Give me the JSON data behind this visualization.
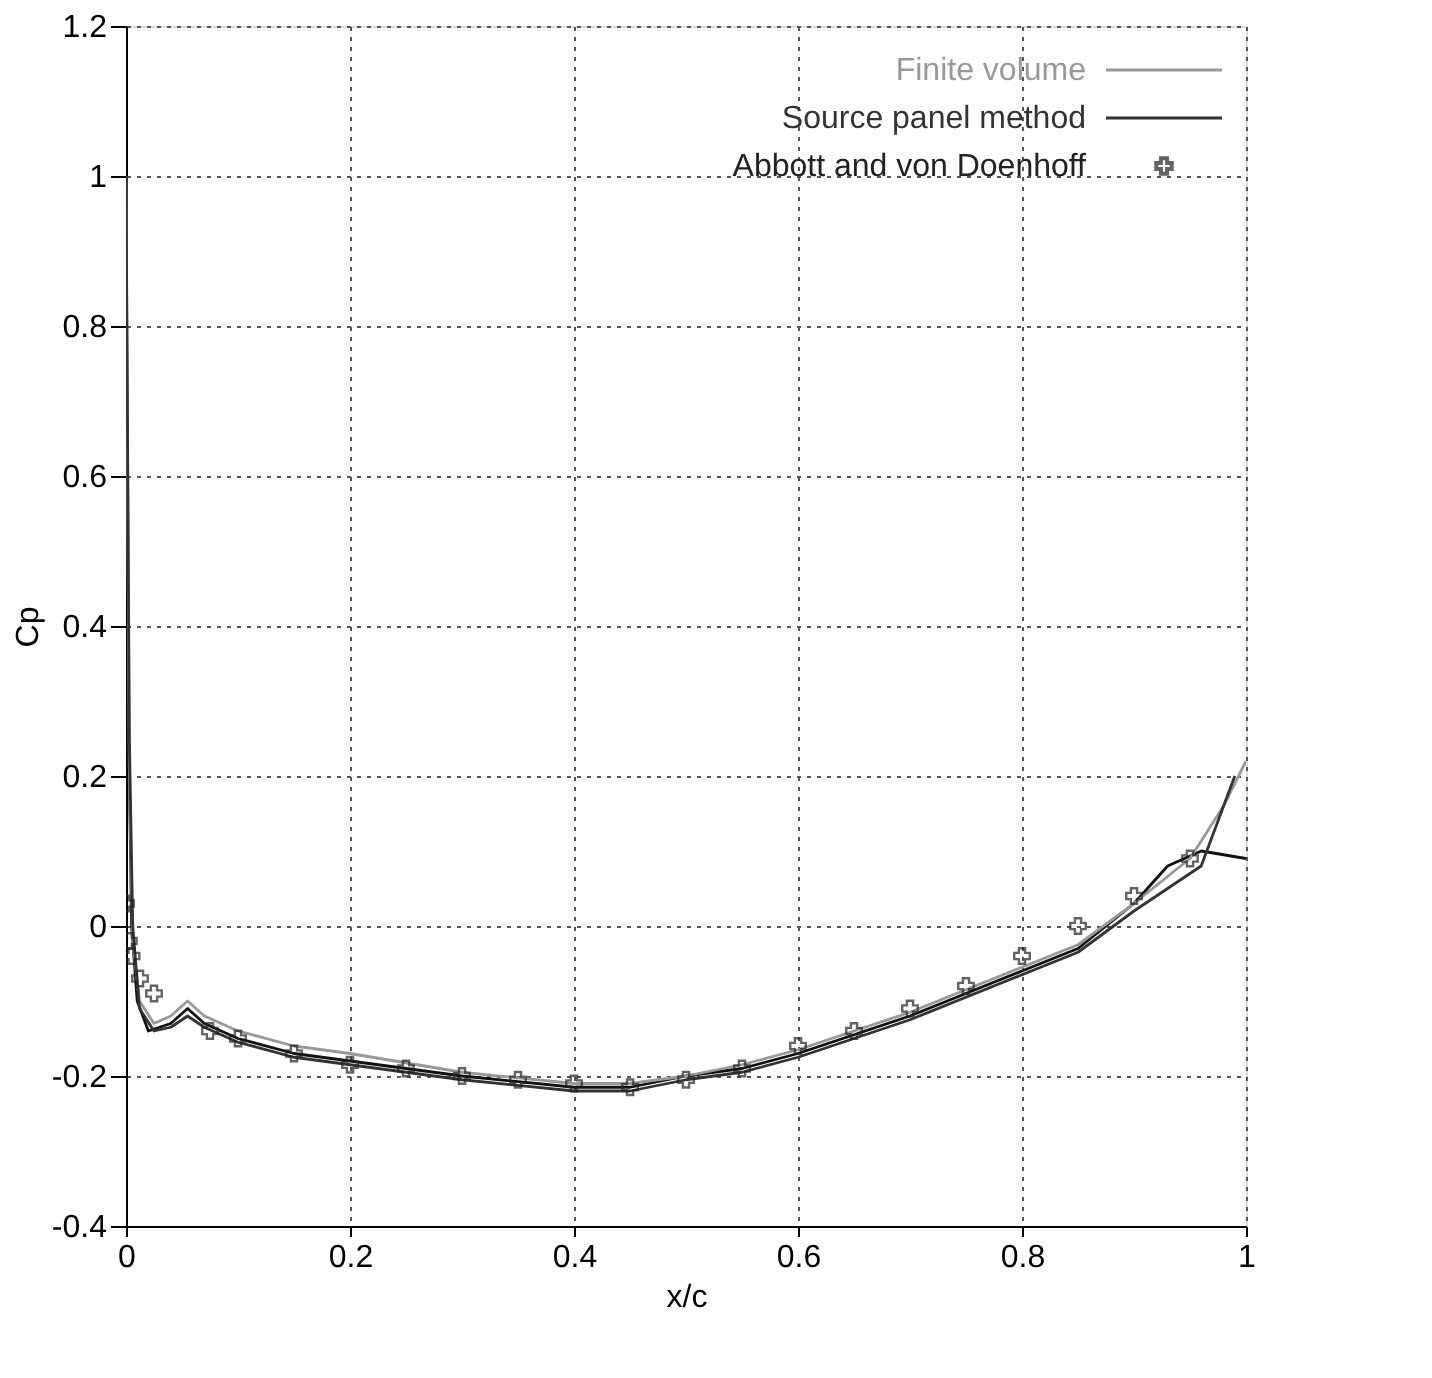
{
  "chart_data": {
    "type": "line",
    "xlabel": "x/c",
    "ylabel": "Cp",
    "xlim": [
      0,
      1
    ],
    "ylim": [
      -0.4,
      1.2
    ],
    "xticks": [
      0,
      0.2,
      0.4,
      0.6,
      0.8,
      1
    ],
    "yticks": [
      -0.4,
      -0.2,
      0,
      0.2,
      0.4,
      0.6,
      0.8,
      1,
      1.2
    ],
    "grid": true,
    "legend": "top right",
    "line_style": "solid",
    "series": [
      {
        "color": "#111111",
        "x": [
          0,
          0.002,
          0.005,
          0.01,
          0.02,
          0.04,
          0.055,
          0.07,
          0.1,
          0.15,
          0.2,
          0.3,
          0.4,
          0.45,
          0.5,
          0.55,
          0.6,
          0.7,
          0.8,
          0.85,
          0.9,
          0.93,
          0.96,
          1.0
        ],
        "values": [
          1.0,
          0.3,
          0.0,
          -0.1,
          -0.14,
          -0.13,
          -0.11,
          -0.13,
          -0.15,
          -0.17,
          -0.18,
          -0.2,
          -0.215,
          -0.215,
          -0.2,
          -0.19,
          -0.17,
          -0.12,
          -0.06,
          -0.03,
          0.03,
          0.08,
          0.1,
          0.09
        ]
      },
      {
        "name": "Finite volume",
        "color": "#999999",
        "x": [
          0,
          0.003,
          0.006,
          0.012,
          0.025,
          0.04,
          0.055,
          0.07,
          0.1,
          0.15,
          0.2,
          0.3,
          0.4,
          0.45,
          0.5,
          0.55,
          0.6,
          0.7,
          0.8,
          0.85,
          0.9,
          0.95,
          0.98,
          1.0
        ],
        "values": [
          1.0,
          0.2,
          -0.02,
          -0.1,
          -0.13,
          -0.12,
          -0.1,
          -0.12,
          -0.14,
          -0.16,
          -0.17,
          -0.195,
          -0.21,
          -0.21,
          -0.2,
          -0.185,
          -0.165,
          -0.115,
          -0.055,
          -0.025,
          0.03,
          0.09,
          0.16,
          0.22
        ]
      },
      {
        "name": "Source panel method",
        "color": "#333333",
        "x": [
          0,
          0.003,
          0.006,
          0.012,
          0.025,
          0.04,
          0.055,
          0.07,
          0.1,
          0.15,
          0.2,
          0.3,
          0.4,
          0.45,
          0.5,
          0.55,
          0.6,
          0.7,
          0.8,
          0.85,
          0.9,
          0.92,
          0.96,
          0.99
        ],
        "values": [
          1.0,
          0.25,
          0.0,
          -0.11,
          -0.14,
          -0.135,
          -0.12,
          -0.135,
          -0.155,
          -0.175,
          -0.185,
          -0.205,
          -0.22,
          -0.22,
          -0.205,
          -0.195,
          -0.175,
          -0.125,
          -0.065,
          -0.035,
          0.02,
          0.04,
          0.08,
          0.2
        ]
      },
      {
        "type": "scatter",
        "name": "Abbott and von Doenhoff",
        "color": "#222222",
        "marker": "cross",
        "x": [
          0,
          0.0025,
          0.005,
          0.0125,
          0.025,
          0.075,
          0.1,
          0.15,
          0.2,
          0.25,
          0.3,
          0.35,
          0.4,
          0.45,
          0.5,
          0.55,
          0.6,
          0.65,
          0.7,
          0.75,
          0.8,
          0.85,
          0.9,
          0.95
        ],
        "values": [
          0.03,
          -0.02,
          -0.04,
          -0.07,
          -0.09,
          -0.14,
          -0.15,
          -0.17,
          -0.185,
          -0.19,
          -0.2,
          -0.205,
          -0.21,
          -0.215,
          -0.205,
          -0.19,
          -0.16,
          -0.14,
          -0.11,
          -0.08,
          -0.04,
          0.0,
          0.04,
          0.09
        ]
      }
    ]
  }
}
